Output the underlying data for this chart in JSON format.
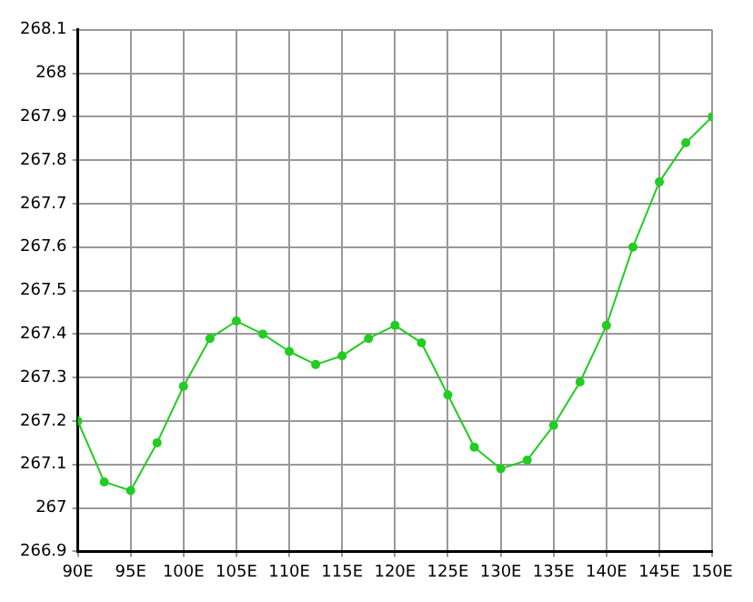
{
  "chart_data": {
    "type": "line",
    "x": [
      90,
      92.5,
      95,
      97.5,
      100,
      102.5,
      105,
      107.5,
      110,
      112.5,
      115,
      117.5,
      120,
      122.5,
      125,
      127.5,
      130,
      132.5,
      135,
      137.5,
      140,
      142.5,
      145,
      147.5,
      150
    ],
    "series": [
      {
        "color": "#22cc22",
        "values": [
          267.2,
          267.06,
          267.04,
          267.15,
          267.28,
          267.39,
          267.43,
          267.4,
          267.36,
          267.33,
          267.35,
          267.39,
          267.42,
          267.38,
          267.26,
          267.14,
          267.09,
          267.11,
          267.19,
          267.29,
          267.42,
          267.6,
          267.75,
          267.84,
          267.9
        ]
      }
    ],
    "xlim": [
      90,
      150
    ],
    "xticks": [
      {
        "value": 90,
        "label": "90E"
      },
      {
        "value": 95,
        "label": "95E"
      },
      {
        "value": 100,
        "label": "100E"
      },
      {
        "value": 105,
        "label": "105E"
      },
      {
        "value": 110,
        "label": "110E"
      },
      {
        "value": 115,
        "label": "115E"
      },
      {
        "value": 120,
        "label": "120E"
      },
      {
        "value": 125,
        "label": "125E"
      },
      {
        "value": 130,
        "label": "130E"
      },
      {
        "value": 135,
        "label": "135E"
      },
      {
        "value": 140,
        "label": "140E"
      },
      {
        "value": 145,
        "label": "145E"
      },
      {
        "value": 150,
        "label": "150E"
      }
    ],
    "ylim": [
      266.9,
      268.1
    ],
    "yticks": [
      266.9,
      267,
      267.1,
      267.2,
      267.3,
      267.4,
      267.5,
      267.6,
      267.7,
      267.8,
      267.9,
      268,
      268.1
    ],
    "grid": true,
    "marker": "circle",
    "line_style": "solid"
  }
}
